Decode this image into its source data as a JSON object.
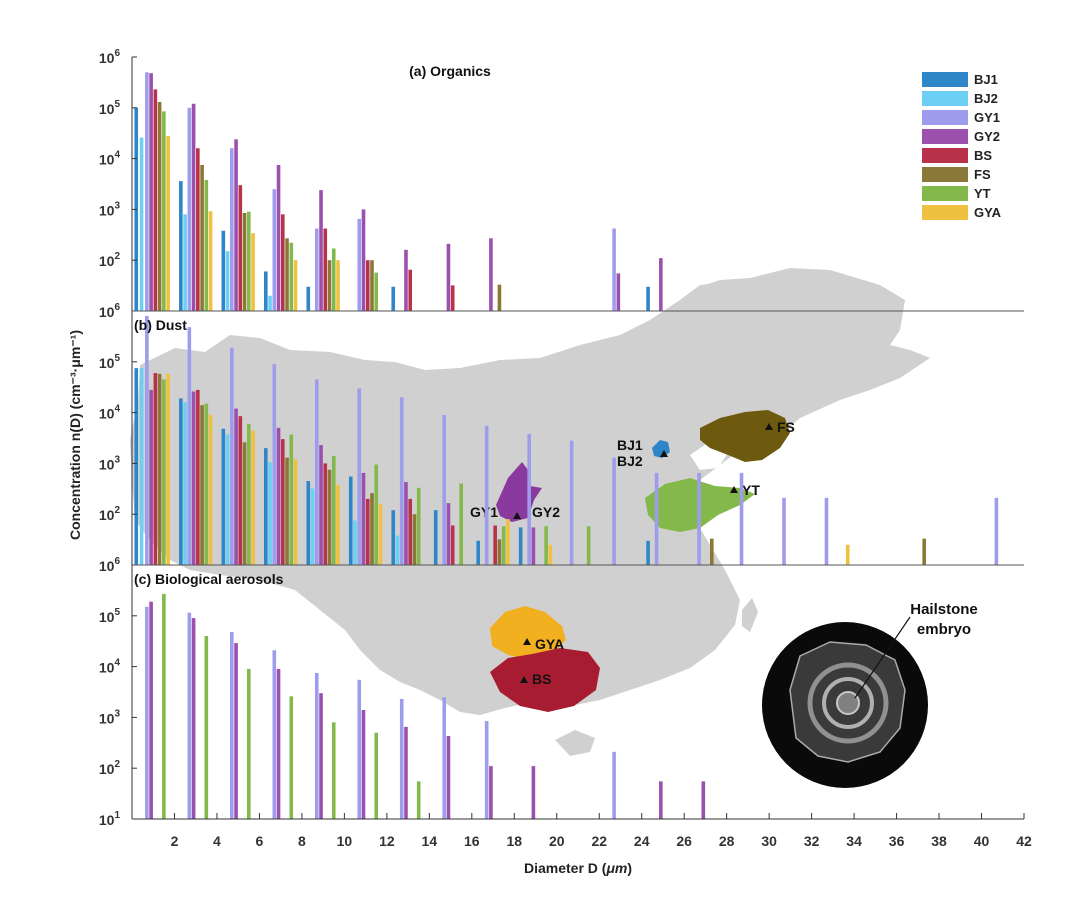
{
  "chart_data": {
    "type": "bar",
    "xlabel": "Diameter D (",
    "xlabel_unit": "μm",
    "xlabel_close": ")",
    "ylabel": "Concentration n(D) (cm⁻³·μm⁻¹)",
    "xlim": [
      0,
      42
    ],
    "x_ticks": [
      2,
      4,
      6,
      8,
      10,
      12,
      14,
      16,
      18,
      20,
      22,
      24,
      26,
      28,
      30,
      32,
      34,
      36,
      38,
      40,
      42
    ],
    "series_names": [
      "BJ1",
      "BJ2",
      "GY1",
      "GY2",
      "BS",
      "FS",
      "YT",
      "GYA"
    ],
    "series_colors": {
      "BJ1": "#2E86C9",
      "BJ2": "#6CCFF4",
      "GY1": "#9E9CEC",
      "GY2": "#9B50AE",
      "BS": "#B8324A",
      "FS": "#8A7838",
      "YT": "#83B84A",
      "GYA": "#F0C040"
    },
    "panels": [
      {
        "key": "organics",
        "title": "(a) Organics",
        "ylim": [
          10,
          1000000
        ],
        "y_ticks": [
          {
            "v": 1000000,
            "mant": "10",
            "exp": "6"
          },
          {
            "v": 100000,
            "mant": "10",
            "exp": "5"
          },
          {
            "v": 10000,
            "mant": "10",
            "exp": "4"
          },
          {
            "v": 1000,
            "mant": "10",
            "exp": "3"
          },
          {
            "v": 100,
            "mant": "10",
            "exp": "2"
          }
        ],
        "series": [
          {
            "name": "BJ1",
            "points": [
              [
                0.2,
                100000
              ],
              [
                2.3,
                3600
              ],
              [
                4.3,
                380
              ],
              [
                6.3,
                60
              ],
              [
                8.3,
                30
              ],
              [
                12.3,
                30
              ],
              [
                24.3,
                30
              ]
            ]
          },
          {
            "name": "BJ2",
            "points": [
              [
                0.45,
                26000
              ],
              [
                2.5,
                800
              ],
              [
                4.5,
                150
              ],
              [
                6.5,
                20
              ]
            ]
          },
          {
            "name": "GY1",
            "points": [
              [
                0.7,
                500000
              ],
              [
                2.7,
                100000
              ],
              [
                4.7,
                16000
              ],
              [
                6.7,
                2500
              ],
              [
                8.7,
                420
              ],
              [
                10.7,
                650
              ],
              [
                22.7,
                420
              ]
            ]
          },
          {
            "name": "GY2",
            "points": [
              [
                0.9,
                480000
              ],
              [
                2.9,
                120000
              ],
              [
                4.9,
                24000
              ],
              [
                6.9,
                7500
              ],
              [
                8.9,
                2400
              ],
              [
                10.9,
                1000
              ],
              [
                12.9,
                160
              ],
              [
                14.9,
                210
              ],
              [
                16.9,
                270
              ],
              [
                22.9,
                55
              ],
              [
                24.9,
                110
              ]
            ]
          },
          {
            "name": "BS",
            "points": [
              [
                1.1,
                230000
              ],
              [
                3.1,
                16000
              ],
              [
                5.1,
                3000
              ],
              [
                7.1,
                800
              ],
              [
                9.1,
                420
              ],
              [
                11.1,
                100
              ],
              [
                13.1,
                65
              ],
              [
                15.1,
                32
              ]
            ]
          },
          {
            "name": "FS",
            "points": [
              [
                1.3,
                130000
              ],
              [
                3.3,
                7500
              ],
              [
                5.3,
                850
              ],
              [
                7.3,
                270
              ],
              [
                9.3,
                100
              ],
              [
                11.3,
                100
              ],
              [
                17.3,
                33
              ]
            ]
          },
          {
            "name": "YT",
            "points": [
              [
                1.5,
                85000
              ],
              [
                3.5,
                3800
              ],
              [
                5.5,
                900
              ],
              [
                7.5,
                220
              ],
              [
                9.5,
                170
              ],
              [
                11.5,
                57
              ]
            ]
          },
          {
            "name": "GYA",
            "points": [
              [
                1.7,
                28000
              ],
              [
                3.7,
                920
              ],
              [
                5.7,
                340
              ],
              [
                7.7,
                100
              ],
              [
                9.7,
                100
              ]
            ]
          }
        ]
      },
      {
        "key": "dust",
        "title": "(b) Dust",
        "ylim": [
          10,
          1000000
        ],
        "y_ticks": [
          {
            "v": 1000000,
            "mant": "10",
            "exp": "6"
          },
          {
            "v": 100000,
            "mant": "10",
            "exp": "5"
          },
          {
            "v": 10000,
            "mant": "10",
            "exp": "4"
          },
          {
            "v": 1000,
            "mant": "10",
            "exp": "3"
          },
          {
            "v": 100,
            "mant": "10",
            "exp": "2"
          }
        ],
        "series": [
          {
            "name": "BJ1",
            "points": [
              [
                0.2,
                75000
              ],
              [
                2.3,
                19000
              ],
              [
                4.3,
                4800
              ],
              [
                6.3,
                2000
              ],
              [
                8.3,
                450
              ],
              [
                10.3,
                550
              ],
              [
                12.3,
                120
              ],
              [
                14.3,
                120
              ],
              [
                16.3,
                30
              ],
              [
                18.3,
                55
              ],
              [
                24.3,
                30
              ]
            ]
          },
          {
            "name": "BJ2",
            "points": [
              [
                0.45,
                75000
              ],
              [
                2.5,
                16000
              ],
              [
                4.5,
                3700
              ],
              [
                6.5,
                1050
              ],
              [
                8.5,
                320
              ],
              [
                10.5,
                75
              ],
              [
                12.5,
                38
              ]
            ]
          },
          {
            "name": "GY1",
            "points": [
              [
                0.7,
                800000
              ],
              [
                2.7,
                480000
              ],
              [
                4.7,
                190000
              ],
              [
                6.7,
                90000
              ],
              [
                8.7,
                45000
              ],
              [
                10.7,
                30000
              ],
              [
                12.7,
                20000
              ],
              [
                14.7,
                9000
              ],
              [
                16.7,
                5500
              ],
              [
                18.7,
                3800
              ],
              [
                20.7,
                2800
              ],
              [
                22.7,
                1300
              ],
              [
                24.7,
                650
              ],
              [
                26.7,
                650
              ],
              [
                28.7,
                650
              ],
              [
                30.7,
                210
              ],
              [
                32.7,
                210
              ],
              [
                40.7,
                210
              ]
            ]
          },
          {
            "name": "GY2",
            "points": [
              [
                0.9,
                28000
              ],
              [
                2.9,
                26000
              ],
              [
                4.9,
                12000
              ],
              [
                6.9,
                5000
              ],
              [
                8.9,
                2300
              ],
              [
                10.9,
                650
              ],
              [
                12.9,
                430
              ],
              [
                14.9,
                165
              ],
              [
                18.9,
                55
              ]
            ]
          },
          {
            "name": "BS",
            "points": [
              [
                1.1,
                60000
              ],
              [
                3.1,
                28000
              ],
              [
                5.1,
                8500
              ],
              [
                7.1,
                3000
              ],
              [
                9.1,
                1000
              ],
              [
                11.1,
                200
              ],
              [
                13.1,
                200
              ],
              [
                15.1,
                60
              ],
              [
                17.1,
                60
              ]
            ]
          },
          {
            "name": "FS",
            "points": [
              [
                1.3,
                58000
              ],
              [
                3.3,
                14000
              ],
              [
                5.3,
                2600
              ],
              [
                7.3,
                1300
              ],
              [
                9.3,
                750
              ],
              [
                11.3,
                260
              ],
              [
                13.3,
                100
              ],
              [
                17.3,
                32
              ],
              [
                27.3,
                33
              ],
              [
                37.3,
                33
              ]
            ]
          },
          {
            "name": "YT",
            "points": [
              [
                1.5,
                45000
              ],
              [
                3.5,
                15000
              ],
              [
                5.5,
                6000
              ],
              [
                7.5,
                3700
              ],
              [
                9.5,
                1400
              ],
              [
                11.5,
                950
              ],
              [
                13.5,
                330
              ],
              [
                15.5,
                400
              ],
              [
                17.5,
                58
              ],
              [
                19.5,
                58
              ],
              [
                21.5,
                58
              ]
            ]
          },
          {
            "name": "GYA",
            "points": [
              [
                1.7,
                58000
              ],
              [
                3.7,
                9000
              ],
              [
                5.7,
                4400
              ],
              [
                7.7,
                1200
              ],
              [
                9.7,
                380
              ],
              [
                11.7,
                160
              ],
              [
                17.7,
                80
              ],
              [
                19.7,
                25
              ],
              [
                33.7,
                25
              ]
            ]
          }
        ]
      },
      {
        "key": "bio",
        "title": "(c) Biological aerosols",
        "ylim": [
          10,
          1000000
        ],
        "y_ticks": [
          {
            "v": 1000000,
            "mant": "10",
            "exp": "6"
          },
          {
            "v": 100000,
            "mant": "10",
            "exp": "5"
          },
          {
            "v": 10000,
            "mant": "10",
            "exp": "4"
          },
          {
            "v": 1000,
            "mant": "10",
            "exp": "3"
          },
          {
            "v": 100,
            "mant": "10",
            "exp": "2"
          },
          {
            "v": 10,
            "mant": "10",
            "exp": "1"
          }
        ],
        "series": [
          {
            "name": "GY1",
            "points": [
              [
                0.7,
                150000
              ],
              [
                2.7,
                115000
              ],
              [
                4.7,
                48000
              ],
              [
                6.7,
                21000
              ],
              [
                8.7,
                7500
              ],
              [
                10.7,
                5500
              ],
              [
                12.7,
                2300
              ],
              [
                14.7,
                2500
              ],
              [
                16.7,
                850
              ],
              [
                22.7,
                210
              ]
            ]
          },
          {
            "name": "GY2",
            "points": [
              [
                0.9,
                190000
              ],
              [
                2.9,
                90000
              ],
              [
                4.9,
                29000
              ],
              [
                6.9,
                9000
              ],
              [
                8.9,
                3000
              ],
              [
                10.9,
                1400
              ],
              [
                12.9,
                650
              ],
              [
                14.9,
                430
              ],
              [
                16.9,
                110
              ],
              [
                18.9,
                110
              ],
              [
                24.9,
                55
              ],
              [
                26.9,
                55
              ]
            ]
          },
          {
            "name": "YT",
            "points": [
              [
                1.5,
                270000
              ],
              [
                3.5,
                40000
              ],
              [
                5.5,
                9000
              ],
              [
                7.5,
                2600
              ],
              [
                9.5,
                800
              ],
              [
                11.5,
                500
              ],
              [
                13.5,
                55
              ]
            ]
          }
        ]
      }
    ],
    "map_sites": [
      "BJ1",
      "BJ2",
      "GY1",
      "GY2",
      "FS",
      "YT",
      "GYA",
      "BS"
    ],
    "annotation": "Hailstone embryo"
  }
}
